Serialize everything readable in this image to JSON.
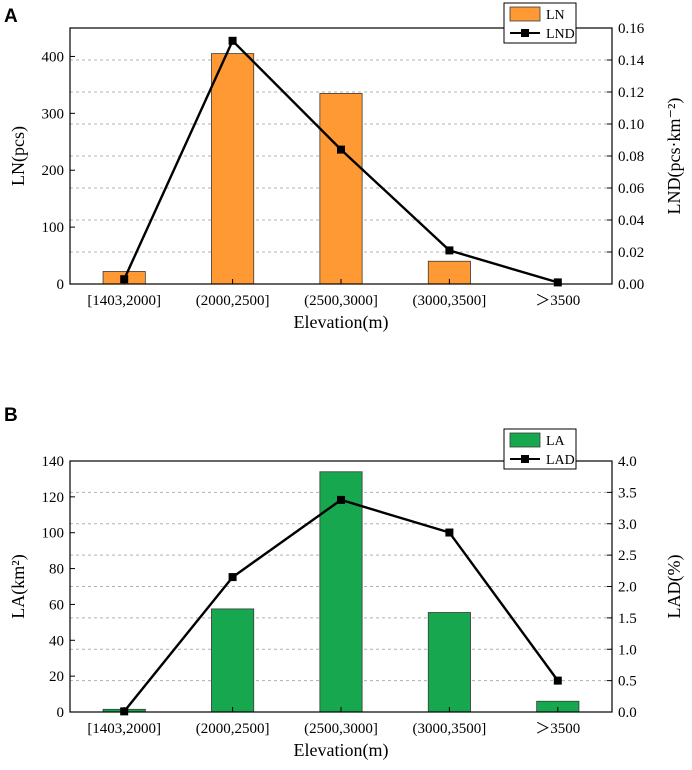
{
  "chart_data": [
    {
      "panel": "A",
      "type": "bar",
      "categories": [
        "[1403,2000]",
        "(2000,2500]",
        "(2500,3000]",
        "(3000,3500]",
        "＞3500"
      ],
      "xlabel": "Elevation(m)",
      "ylabel_left": "LN(pcs)",
      "ylabel_right": "LND(pcs·km⁻²)",
      "ylim_left": [
        0,
        450
      ],
      "ylim_right": [
        0,
        0.16
      ],
      "left_ticks": [
        "0",
        "100",
        "200",
        "300",
        "400"
      ],
      "right_ticks": [
        "0.00",
        "0.02",
        "0.04",
        "0.06",
        "0.08",
        "0.10",
        "0.12",
        "0.14",
        "0.16"
      ],
      "bar_color": "#ff9933",
      "series": [
        {
          "name": "LN",
          "type": "bar",
          "axis": "left",
          "values": [
            22,
            405,
            335,
            40,
            0
          ]
        },
        {
          "name": "LND",
          "type": "line",
          "axis": "right",
          "values": [
            0.003,
            0.152,
            0.084,
            0.021,
            0.001
          ]
        }
      ]
    },
    {
      "panel": "B",
      "type": "bar",
      "categories": [
        "[1403,2000]",
        "(2000,2500]",
        "(2500,3000]",
        "(3000,3500]",
        "＞3500"
      ],
      "xlabel": "Elevation(m)",
      "ylabel_left": "LA(km²)",
      "ylabel_right": "LAD(%)",
      "ylim_left": [
        0,
        140
      ],
      "ylim_right": [
        0,
        4.0
      ],
      "left_ticks": [
        "0",
        "20",
        "40",
        "60",
        "80",
        "100",
        "120",
        "140"
      ],
      "right_ticks": [
        "0.0",
        "0.5",
        "1.0",
        "1.5",
        "2.0",
        "2.5",
        "3.0",
        "3.5",
        "4.0"
      ],
      "bar_color": "#17a84f",
      "series": [
        {
          "name": "LA",
          "type": "bar",
          "axis": "left",
          "values": [
            1.5,
            57.5,
            134,
            55.5,
            6
          ]
        },
        {
          "name": "LAD",
          "type": "line",
          "axis": "right",
          "values": [
            0.01,
            2.15,
            3.38,
            2.86,
            0.5
          ]
        }
      ]
    }
  ]
}
